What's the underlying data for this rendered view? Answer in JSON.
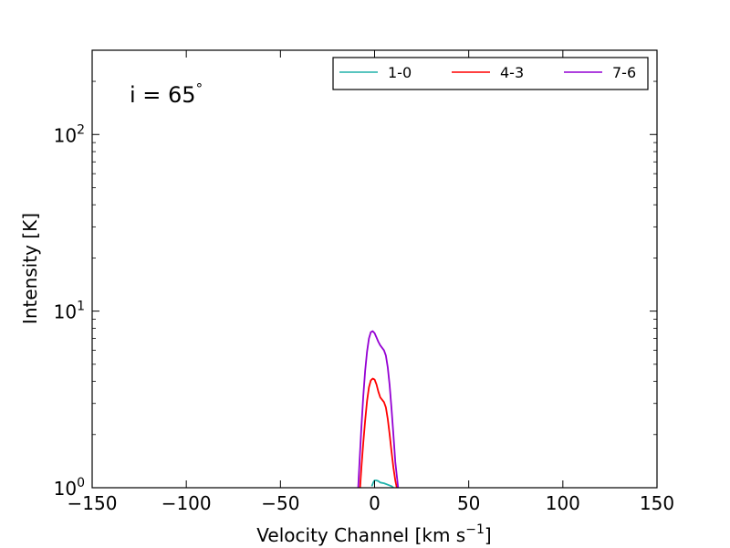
{
  "chart_data": {
    "type": "line",
    "xlabel_main": "Velocity Channel [km s",
    "xlabel_sup": "−1",
    "xlabel_end": "]",
    "ylabel": "Intensity [K]",
    "annotation_main": "i = 65",
    "annotation_sup": "°",
    "xlim": [
      -150,
      150
    ],
    "ylim": [
      1,
      300
    ],
    "yscale": "log",
    "x_ticks": [
      -150,
      -100,
      -50,
      0,
      50,
      100,
      150
    ],
    "x_tick_labels": [
      "−150",
      "−100",
      "−50",
      "0",
      "50",
      "100",
      "150"
    ],
    "y_ticks": [
      {
        "value": 1,
        "base": "10",
        "exp": "0"
      },
      {
        "value": 10,
        "base": "10",
        "exp": "1"
      },
      {
        "value": 100,
        "base": "10",
        "exp": "2"
      }
    ],
    "grid": false,
    "legend_position": "top-right",
    "series": [
      {
        "name": "1-0",
        "color": "#20b2aa",
        "x": [
          -1.5,
          -0.5,
          0,
          1,
          2,
          3,
          5,
          7,
          9,
          10
        ],
        "y": [
          1.02,
          1.08,
          1.1,
          1.1,
          1.09,
          1.07,
          1.06,
          1.04,
          1.02,
          1.0
        ]
      },
      {
        "name": "4-3",
        "color": "#ff0000",
        "x": [
          -7.7,
          -7,
          -6,
          -5,
          -4,
          -3,
          -2,
          -1,
          0,
          1,
          2,
          3,
          4,
          5,
          6,
          7,
          8,
          9,
          10,
          11,
          11.8
        ],
        "y": [
          1.0,
          1.3,
          1.8,
          2.4,
          3.1,
          3.7,
          4.05,
          4.15,
          4.1,
          3.85,
          3.5,
          3.25,
          3.15,
          3.05,
          2.85,
          2.45,
          2.0,
          1.6,
          1.3,
          1.1,
          1.0
        ]
      },
      {
        "name": "7-6",
        "color": "#9400d3",
        "x": [
          -8.7,
          -8,
          -7,
          -6,
          -5,
          -4,
          -3,
          -2,
          -1,
          0,
          1,
          2,
          3,
          4,
          5,
          6,
          7,
          8,
          9,
          10,
          11,
          12.5
        ],
        "y": [
          1.0,
          1.4,
          2.2,
          3.3,
          4.6,
          5.9,
          7.0,
          7.6,
          7.7,
          7.5,
          7.1,
          6.7,
          6.4,
          6.2,
          6.0,
          5.6,
          4.8,
          3.8,
          2.8,
          2.0,
          1.4,
          1.0
        ]
      }
    ]
  }
}
